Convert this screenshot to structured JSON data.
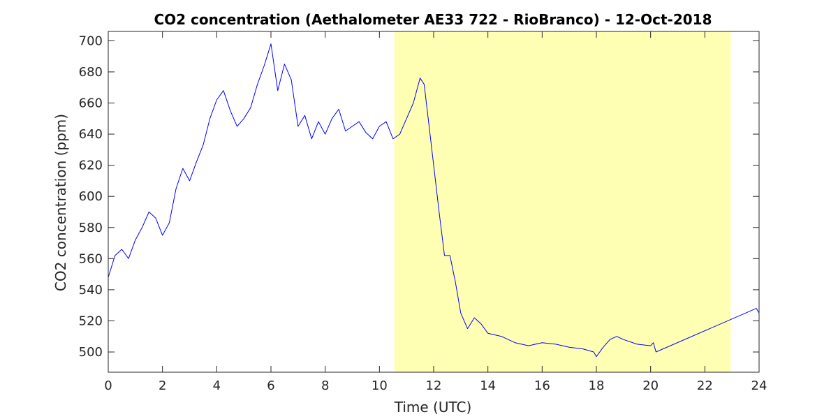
{
  "colors": {
    "background": "#ffffff",
    "shade": "#ffffb3",
    "series": "#0000ff",
    "axis": "#262626"
  },
  "chart_data": {
    "type": "line",
    "title": "CO2 concentration (Aethalometer AE33 722 - RioBranco) - 12-Oct-2018",
    "xlabel": "Time (UTC)",
    "ylabel": "CO2 concentration (ppm)",
    "xlim": [
      0,
      24
    ],
    "ylim": [
      487,
      706
    ],
    "xticks": [
      0,
      2,
      4,
      6,
      8,
      10,
      12,
      14,
      16,
      18,
      20,
      22,
      24
    ],
    "yticks": [
      500,
      520,
      540,
      560,
      580,
      600,
      620,
      640,
      660,
      680,
      700
    ],
    "grid": false,
    "legend": "none",
    "shaded_x_range": [
      10.55,
      22.95
    ],
    "series": [
      {
        "x": [
          0,
          0.25,
          0.5,
          0.75,
          1.0,
          1.25,
          1.5,
          1.75,
          2.0,
          2.25,
          2.5,
          2.75,
          3.0,
          3.25,
          3.5,
          3.75,
          4.0,
          4.25,
          4.5,
          4.75,
          5.0,
          5.25,
          5.5,
          5.75,
          6.0,
          6.25,
          6.5,
          6.75,
          7.0,
          7.25,
          7.5,
          7.75,
          8.0,
          8.25,
          8.5,
          8.75,
          9.0,
          9.25,
          9.5,
          9.75,
          10.0,
          10.25,
          10.5,
          10.75,
          11.0,
          11.25,
          11.5,
          11.65,
          11.8,
          12.0,
          12.2,
          12.4,
          12.6,
          12.8,
          13.0,
          13.25,
          13.5,
          13.75,
          14.0,
          14.5,
          15.0,
          15.5,
          16.0,
          16.5,
          17.0,
          17.5,
          17.9,
          18.0,
          18.25,
          18.5,
          18.75,
          19.0,
          19.5,
          20.0,
          20.1,
          20.2,
          23.9,
          24.0
        ],
        "y": [
          548,
          562,
          566,
          560,
          572,
          580,
          590,
          586,
          575,
          583,
          605,
          618,
          610,
          622,
          633,
          650,
          662,
          668,
          655,
          645,
          650,
          657,
          672,
          684,
          698,
          668,
          685,
          675,
          645,
          652,
          637,
          648,
          640,
          650,
          656,
          642,
          645,
          648,
          641,
          637,
          645,
          648,
          637,
          640,
          650,
          660,
          676,
          672,
          650,
          620,
          590,
          562,
          562,
          545,
          525,
          515,
          522,
          518,
          512,
          510,
          506,
          504,
          506,
          505,
          503,
          502,
          500,
          497,
          503,
          508,
          510,
          508,
          505,
          504,
          506,
          500,
          528,
          525
        ]
      }
    ]
  }
}
